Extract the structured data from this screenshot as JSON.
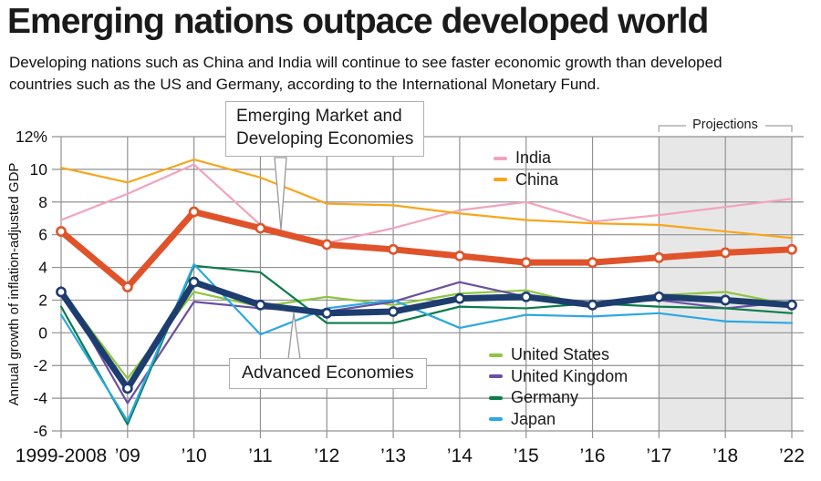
{
  "header": {
    "title": "Emerging nations outpace developed world",
    "subtitle_line1": "Developing nations such as China and India will continue to see faster economic growth than developed",
    "subtitle_line2": "countries such as the US and Germany, according to the International Monetary Fund."
  },
  "callouts": {
    "emde": {
      "line1": "Emerging Market and",
      "line2": "Developing Economies"
    },
    "advanced": {
      "label": "Advanced Economies"
    }
  },
  "projections": {
    "label": "Projections"
  },
  "legend_top": {
    "items": [
      "india",
      "china"
    ]
  },
  "legend_bottom": {
    "items": [
      "us",
      "uk",
      "germany",
      "japan"
    ]
  },
  "colors": {
    "gridline": "#919191",
    "projection_fill": "#e7e7e7",
    "bracket": "#b0b0b0",
    "needle_stroke": "#999999",
    "text": "#111111"
  },
  "chart_data": {
    "type": "line",
    "title": "Emerging nations outpace developed world",
    "ylabel": "Annual growth of inflation-adjusted GDP",
    "xlabel": "",
    "ylim": [
      -6,
      12
    ],
    "grid": true,
    "categories": [
      "1999-2008",
      "’09",
      "’10",
      "’11",
      "’12",
      "’13",
      "’14",
      "’15",
      "’16",
      "’17",
      "’18",
      "’22"
    ],
    "ytick_values": [
      12,
      10,
      8,
      6,
      4,
      2,
      0,
      -2,
      -4,
      -6
    ],
    "ytick_labels": [
      "12%",
      "10",
      "8",
      "6",
      "4",
      "2",
      "0",
      "-2",
      "-4",
      "-6"
    ],
    "projection_start_index": 9,
    "projection_note": "Shaded region from ’17 through ’22 marks IMF projections",
    "series": [
      {
        "id": "india",
        "name": "India",
        "color": "#f3a3bd",
        "thick": false,
        "markers": false,
        "values": [
          6.9,
          8.5,
          10.3,
          6.6,
          5.5,
          6.4,
          7.5,
          8.0,
          6.8,
          7.2,
          7.7,
          8.2
        ]
      },
      {
        "id": "china",
        "name": "China",
        "color": "#f7a61b",
        "thick": false,
        "markers": false,
        "values": [
          10.1,
          9.2,
          10.6,
          9.5,
          7.9,
          7.8,
          7.3,
          6.9,
          6.7,
          6.6,
          6.2,
          5.8
        ]
      },
      {
        "id": "us",
        "name": "United States",
        "color": "#8cc63f",
        "thick": false,
        "markers": false,
        "values": [
          2.6,
          -2.8,
          2.5,
          1.6,
          2.2,
          1.7,
          2.4,
          2.6,
          1.6,
          2.3,
          2.5,
          1.7
        ]
      },
      {
        "id": "uk",
        "name": "United Kingdom",
        "color": "#6b4fa1",
        "thick": false,
        "markers": false,
        "values": [
          2.8,
          -4.3,
          1.9,
          1.5,
          1.3,
          1.9,
          3.1,
          2.2,
          1.8,
          2.0,
          1.5,
          1.9
        ]
      },
      {
        "id": "germany",
        "name": "Germany",
        "color": "#0b7b4b",
        "thick": false,
        "markers": false,
        "values": [
          1.6,
          -5.6,
          4.1,
          3.7,
          0.6,
          0.6,
          1.6,
          1.5,
          1.8,
          1.6,
          1.5,
          1.2
        ]
      },
      {
        "id": "japan",
        "name": "Japan",
        "color": "#2ba8e0",
        "thick": false,
        "markers": false,
        "values": [
          1.1,
          -5.4,
          4.2,
          -0.1,
          1.5,
          2.0,
          0.3,
          1.1,
          1.0,
          1.2,
          0.7,
          0.6
        ]
      },
      {
        "id": "emde",
        "name": "Emerging Market and Developing Economies",
        "color": "#e0532a",
        "thick": true,
        "markers": true,
        "values": [
          6.2,
          2.8,
          7.4,
          6.4,
          5.4,
          5.1,
          4.7,
          4.3,
          4.3,
          4.6,
          4.9,
          5.1
        ]
      },
      {
        "id": "advanced",
        "name": "Advanced Economies",
        "color": "#1e3d6f",
        "thick": true,
        "markers": true,
        "values": [
          2.5,
          -3.4,
          3.1,
          1.7,
          1.2,
          1.3,
          2.1,
          2.2,
          1.7,
          2.2,
          2.0,
          1.7
        ]
      }
    ]
  }
}
